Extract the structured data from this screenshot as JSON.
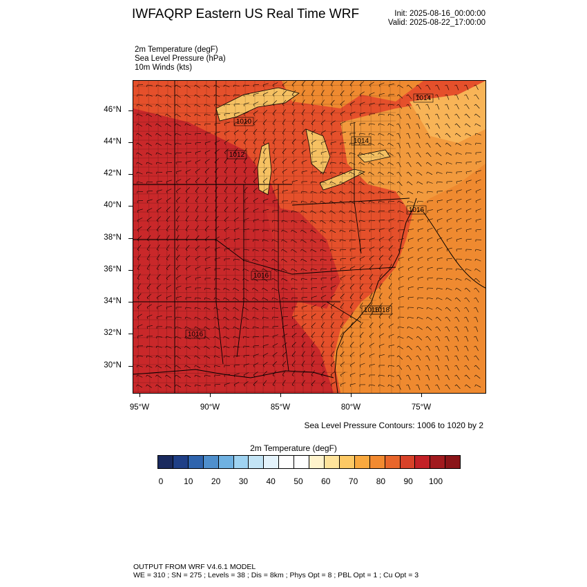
{
  "header": {
    "title": "IWFAQRP Eastern US Real Time WRF",
    "init": "Init: 2025-08-16_00:00:00",
    "valid": "Valid: 2025-08-22_17:00:00"
  },
  "fields": {
    "line1": "2m Temperature   (degF)",
    "line2": "Sea Level Pressure   (hPa)",
    "line3": "10m Winds   (kts)"
  },
  "map": {
    "lat_labels": [
      "46°N",
      "44°N",
      "42°N",
      "40°N",
      "38°N",
      "36°N",
      "34°N",
      "32°N",
      "30°N"
    ],
    "lon_labels": [
      "95°W",
      "90°W",
      "85°W",
      "80°W",
      "75°W"
    ],
    "pressure_labels": [
      "1010",
      "1014",
      "1012",
      "1016",
      "1016",
      "1018",
      "1016",
      "1014",
      "1016"
    ],
    "colors": {
      "hot": "#c9282a",
      "warm": "#e5502b",
      "mild": "#ef8a30",
      "water": "#f19a3a",
      "lake": "#f8c96a"
    }
  },
  "contour_note": "Sea Level Pressure Contours: 1006 to 1020 by 2",
  "colorbar": {
    "title": "2m Temperature  (degF)",
    "colors": [
      "#1a2a5e",
      "#1f3f86",
      "#2f64ad",
      "#4f8fcc",
      "#6fb1e1",
      "#9fd3f1",
      "#c3e4f5",
      "#e4f3fb",
      "#ffffff",
      "#ffffff",
      "#fff3cc",
      "#fee39b",
      "#fdc965",
      "#f9a93f",
      "#f28a30",
      "#e8662b",
      "#d84229",
      "#c32127",
      "#a11a1e",
      "#8a1418"
    ],
    "ticks": [
      "0",
      "10",
      "20",
      "30",
      "40",
      "50",
      "60",
      "70",
      "80",
      "90",
      "100"
    ]
  },
  "footer": {
    "line1": "OUTPUT FROM WRF V4.6.1 MODEL",
    "line2": "WE = 310 ; SN = 275 ; Levels = 38 ; Dis = 8km ; Phys Opt = 8 ; PBL Opt = 1 ; Cu Opt = 3"
  }
}
